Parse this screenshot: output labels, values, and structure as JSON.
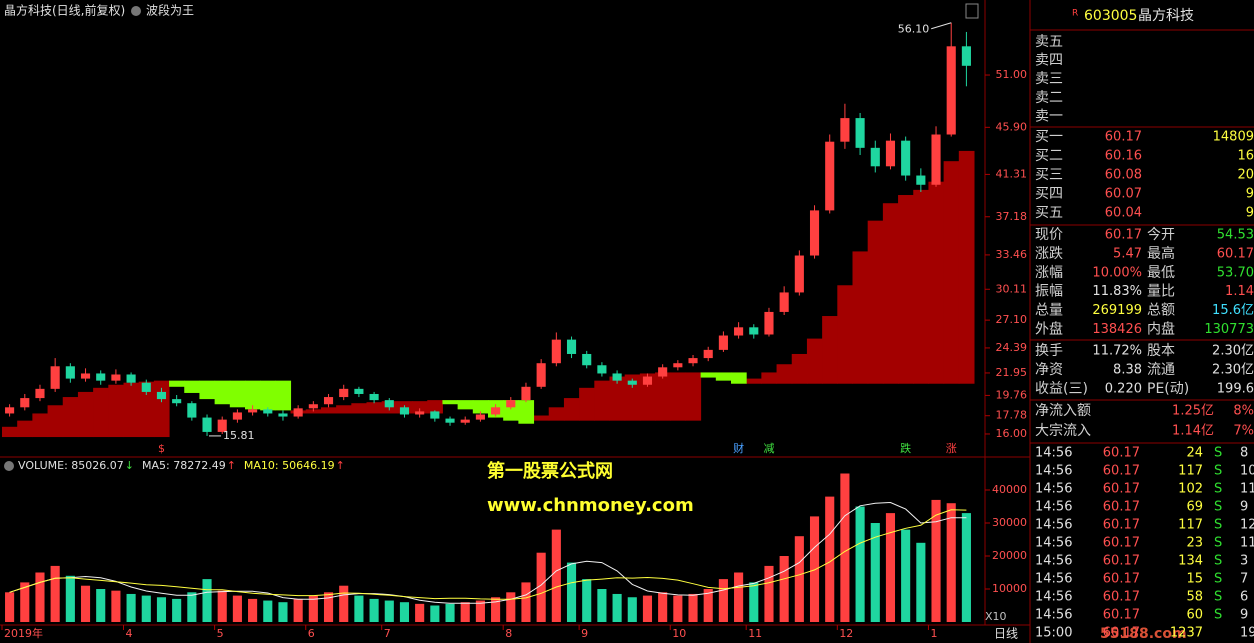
{
  "chart_data": [
    {
      "type": "candlestick",
      "title": "晶方科技(日线,前复权)",
      "subtitle": "波段为王",
      "up_color": "#ff4040",
      "down_color": "#1fd6a0",
      "ylim": [
        13.95,
        56.17
      ],
      "yticks": [
        {
          "value": 16,
          "label": "16.00"
        },
        17.78,
        19.76,
        21.95,
        24.39,
        {
          "value": 27.1,
          "label": "27.10"
        },
        30.11,
        33.46,
        37.18,
        41.31,
        {
          "value": 45.9,
          "label": "45.90"
        },
        {
          "value": 51,
          "label": "51.00"
        }
      ],
      "open": [
        18.0,
        18.6,
        19.5,
        20.4,
        22.6,
        21.4,
        21.9,
        21.2,
        21.8,
        21.0,
        20.1,
        19.4,
        19.0,
        17.6,
        16.2,
        17.4,
        18.1,
        18.4,
        18.0,
        17.7,
        18.5,
        18.9,
        19.6,
        20.4,
        19.9,
        19.3,
        18.6,
        17.9,
        18.2,
        17.5,
        17.1,
        17.4,
        17.9,
        18.6,
        19.3,
        20.6,
        22.9,
        25.2,
        23.8,
        22.7,
        21.9,
        21.2,
        20.8,
        21.6,
        22.5,
        22.9,
        23.4,
        24.2,
        25.6,
        26.4,
        25.7,
        27.9,
        29.8,
        33.4,
        37.8,
        44.5,
        46.8,
        43.9,
        42.1,
        44.6,
        41.2,
        40.3,
        45.2,
        53.8
      ],
      "high": [
        18.9,
        19.9,
        20.8,
        23.4,
        22.9,
        22.4,
        22.2,
        22.3,
        22.0,
        21.3,
        20.5,
        19.8,
        19.2,
        17.9,
        17.7,
        18.4,
        18.8,
        18.6,
        18.3,
        18.8,
        19.2,
        19.9,
        20.8,
        20.6,
        20.1,
        19.5,
        18.8,
        18.5,
        18.3,
        17.7,
        17.7,
        18.2,
        18.9,
        19.6,
        21.0,
        23.3,
        25.9,
        25.5,
        24.1,
        23.0,
        22.2,
        21.4,
        21.9,
        22.8,
        23.2,
        23.7,
        24.5,
        26.0,
        26.9,
        26.7,
        28.3,
        30.4,
        33.9,
        38.3,
        45.2,
        48.2,
        47.3,
        44.6,
        45.3,
        45.0,
        41.9,
        46.0,
        56.1,
        55.2
      ],
      "low": [
        17.7,
        18.3,
        19.2,
        20.1,
        21.0,
        21.1,
        20.8,
        20.9,
        20.7,
        19.8,
        19.1,
        18.7,
        17.3,
        15.81,
        16.0,
        17.1,
        17.8,
        17.7,
        17.3,
        17.5,
        18.2,
        18.6,
        19.3,
        19.6,
        19.0,
        18.3,
        17.6,
        17.6,
        17.2,
        16.8,
        16.9,
        17.2,
        17.7,
        18.4,
        19.1,
        20.4,
        22.6,
        23.4,
        22.4,
        21.6,
        20.9,
        20.5,
        20.6,
        21.4,
        22.2,
        22.6,
        23.1,
        24.0,
        25.3,
        25.3,
        25.5,
        27.6,
        29.5,
        33.1,
        37.5,
        43.8,
        43.2,
        41.5,
        41.8,
        40.7,
        39.6,
        40.1,
        45.0,
        49.9
      ],
      "close": [
        18.6,
        19.5,
        20.4,
        22.6,
        21.4,
        21.9,
        21.2,
        21.8,
        21.0,
        20.1,
        19.4,
        19.0,
        17.6,
        16.2,
        17.4,
        18.1,
        18.4,
        18.0,
        17.7,
        18.5,
        18.9,
        19.6,
        20.4,
        19.9,
        19.3,
        18.6,
        17.9,
        18.2,
        17.5,
        17.1,
        17.4,
        17.9,
        18.6,
        19.3,
        20.6,
        22.9,
        25.2,
        23.8,
        22.7,
        21.9,
        21.2,
        20.8,
        21.6,
        22.5,
        22.9,
        23.4,
        24.2,
        25.6,
        26.4,
        25.7,
        27.9,
        29.8,
        33.4,
        37.8,
        44.5,
        46.8,
        43.9,
        42.1,
        44.6,
        41.2,
        40.3,
        45.2,
        53.8,
        51.9
      ],
      "band": {
        "rise_color": "#a30000",
        "fall_color": "#80ff00",
        "rise_top": [
          16.7,
          17.3,
          18.0,
          18.8,
          19.6,
          20.1,
          20.5,
          20.8,
          21.0,
          21.1,
          21.2,
          null,
          null,
          null,
          null,
          null,
          null,
          null,
          null,
          18.3,
          18.4,
          18.6,
          18.8,
          19.0,
          19.1,
          19.2,
          19.2,
          19.2,
          19.3,
          null,
          null,
          null,
          null,
          null,
          null,
          17.8,
          18.6,
          19.5,
          20.5,
          21.2,
          21.6,
          21.8,
          21.9,
          22.0,
          22.0,
          22.0,
          null,
          null,
          null,
          21.4,
          22.0,
          22.8,
          23.8,
          25.3,
          27.5,
          30.5,
          33.8,
          36.8,
          38.5,
          39.3,
          39.8,
          40.6,
          42.6,
          43.6
        ],
        "rise_bottom": [
          15.7,
          15.7,
          15.7,
          15.7,
          15.7,
          15.7,
          15.7,
          15.7,
          15.7,
          15.7,
          15.7,
          null,
          null,
          null,
          null,
          null,
          null,
          null,
          null,
          18.0,
          18.0,
          18.0,
          18.0,
          18.0,
          18.0,
          18.0,
          18.0,
          18.0,
          18.0,
          null,
          null,
          null,
          null,
          null,
          null,
          17.3,
          17.3,
          17.3,
          17.3,
          17.3,
          17.3,
          17.3,
          17.3,
          17.3,
          17.3,
          17.3,
          null,
          null,
          null,
          20.9,
          20.9,
          20.9,
          20.9,
          20.9,
          20.9,
          20.9,
          20.9,
          20.9,
          20.9,
          20.9,
          20.9,
          20.9,
          20.9,
          20.9
        ],
        "fall_top": [
          null,
          null,
          null,
          null,
          null,
          null,
          null,
          null,
          null,
          null,
          null,
          21.2,
          21.2,
          21.2,
          21.2,
          21.2,
          21.2,
          21.2,
          21.2,
          null,
          null,
          null,
          null,
          null,
          null,
          null,
          null,
          null,
          null,
          19.3,
          19.3,
          19.3,
          19.3,
          19.3,
          19.3,
          null,
          null,
          null,
          null,
          null,
          null,
          null,
          null,
          null,
          null,
          null,
          22.0,
          22.0,
          22.0,
          null,
          null,
          null,
          null,
          null,
          null,
          null,
          null,
          null,
          null,
          null,
          null,
          null,
          null,
          null
        ],
        "fall_bottom": [
          null,
          null,
          null,
          null,
          null,
          null,
          null,
          null,
          null,
          null,
          null,
          20.6,
          20.0,
          19.4,
          18.9,
          18.6,
          18.4,
          18.3,
          18.3,
          null,
          null,
          null,
          null,
          null,
          null,
          null,
          null,
          null,
          null,
          18.9,
          18.4,
          18.0,
          17.6,
          17.3,
          17.0,
          null,
          null,
          null,
          null,
          null,
          null,
          null,
          null,
          null,
          null,
          null,
          21.5,
          21.2,
          20.9,
          null,
          null,
          null,
          null,
          null,
          null,
          null,
          null,
          null,
          null,
          null,
          null,
          null,
          null,
          null
        ]
      },
      "annotations": [
        {
          "x": 62,
          "value": 56.1,
          "label": "56.10"
        },
        {
          "x": 13,
          "value": 15.81,
          "label": "15.81"
        }
      ],
      "signals": [
        {
          "x": 10,
          "label": "$",
          "color": "#ff4040"
        },
        {
          "x": 48,
          "label": "财",
          "color": "#4aa0ff"
        },
        {
          "x": 50,
          "label": "减",
          "color": "#40e040"
        },
        {
          "x": 59,
          "label": "跌",
          "color": "#40e040"
        },
        {
          "x": 62,
          "label": "涨",
          "color": "#ff4040"
        }
      ]
    },
    {
      "type": "bar",
      "legend": [
        {
          "text": "VOLUME: 85026.07",
          "arrow": "↓",
          "color": "#e0e0e0",
          "arrow_color": "#40e040"
        },
        {
          "text": "MA5: 78272.49",
          "arrow": "↑",
          "color": "#e0e0e0",
          "arrow_color": "#ff4040"
        },
        {
          "text": "MA10: 50646.19",
          "arrow": "↑",
          "color": "#ffff40",
          "arrow_color": "#ff4040"
        }
      ],
      "ylim": [
        0,
        49700
      ],
      "yticks": [
        10000,
        20000,
        30000,
        40000
      ],
      "values": [
        9000,
        12000,
        15000,
        17000,
        14000,
        11000,
        10000,
        9500,
        8500,
        8000,
        7500,
        7000,
        9000,
        13000,
        9500,
        8000,
        7000,
        6500,
        6000,
        7000,
        8000,
        9000,
        11000,
        8000,
        7000,
        6500,
        6000,
        5500,
        5000,
        5500,
        6000,
        6500,
        7500,
        9000,
        12000,
        21000,
        28000,
        18000,
        13000,
        10000,
        8500,
        7500,
        8000,
        9000,
        8000,
        8500,
        10000,
        13000,
        15000,
        12000,
        17000,
        20000,
        26000,
        32000,
        38000,
        45000,
        35000,
        30000,
        33000,
        28000,
        24000,
        37000,
        36000,
        33000
      ],
      "lines": [
        {
          "color": "#f0f0f0",
          "values": [
            9000,
            10500,
            12000,
            13250,
            13400,
            13800,
            13400,
            12300,
            10600,
            9400,
            8700,
            8100,
            8100,
            9000,
            9200,
            9300,
            9300,
            8800,
            7400,
            6900,
            6900,
            7300,
            8200,
            8600,
            8600,
            8300,
            7700,
            6600,
            6000,
            5700,
            5700,
            5700,
            6100,
            6900,
            8200,
            11200,
            15500,
            17600,
            18400,
            18000,
            15500,
            11400,
            9400,
            8700,
            8200,
            8100,
            8700,
            9700,
            10900,
            11700,
            13400,
            15400,
            18000,
            22600,
            26600,
            32200,
            35200,
            36000,
            36200,
            34200,
            30000,
            30400,
            31600,
            31600
          ]
        },
        {
          "color": "#ffff40",
          "values": [
            9000,
            10500,
            12000,
            13250,
            13400,
            13000,
            12600,
            12200,
            11800,
            11300,
            11100,
            10700,
            10200,
            9800,
            9800,
            9200,
            8700,
            8400,
            8200,
            8000,
            8000,
            8300,
            8800,
            8700,
            8400,
            8100,
            7700,
            7400,
            7100,
            7200,
            7200,
            7000,
            6900,
            6900,
            7300,
            8700,
            10600,
            11900,
            12700,
            13000,
            13400,
            13300,
            13500,
            13200,
            12700,
            11600,
            10500,
            10100,
            10500,
            11000,
            11900,
            13100,
            14300,
            15800,
            18200,
            21400,
            23900,
            25700,
            27100,
            28400,
            29300,
            32400,
            34000,
            33900
          ]
        }
      ],
      "xticks": [
        {
          "value": 0,
          "label": "2019年"
        },
        {
          "value": 8,
          "label": "4"
        },
        {
          "value": 14,
          "label": "5"
        },
        {
          "value": 20,
          "label": "6"
        },
        {
          "value": 25,
          "label": "7"
        },
        {
          "value": 33,
          "label": "8"
        },
        {
          "value": 38,
          "label": "9"
        },
        {
          "value": 44,
          "label": "10"
        },
        {
          "value": 49,
          "label": "11"
        },
        {
          "value": 55,
          "label": "12"
        },
        {
          "value": 61,
          "label": "1"
        }
      ],
      "scale_note": "X10",
      "period": "日线"
    }
  ],
  "watermark": {
    "line1": "第一股票公式网",
    "line2": "www.chnmoney.com",
    "corner": "55188.com"
  },
  "quote": {
    "badge": "R",
    "code": "603005",
    "name": "晶方科技",
    "asks": [
      "卖五",
      "卖四",
      "卖三",
      "卖二",
      "卖一"
    ],
    "bids": [
      [
        "买一",
        "60.17",
        "14809"
      ],
      [
        "买二",
        "60.16",
        "16"
      ],
      [
        "买三",
        "60.08",
        "20"
      ],
      [
        "买四",
        "60.07",
        "9"
      ],
      [
        "买五",
        "60.04",
        "9"
      ]
    ],
    "stats": [
      {
        "cells": [
          "现价",
          "60.17",
          "今开",
          "54.53"
        ],
        "colors": [
          "#ff5050",
          "#30e030"
        ]
      },
      {
        "cells": [
          "涨跌",
          "5.47",
          "最高",
          "60.17"
        ],
        "colors": [
          "#ff5050",
          "#ff5050"
        ]
      },
      {
        "cells": [
          "涨幅",
          "10.00%",
          "最低",
          "53.70"
        ],
        "colors": [
          "#ff5050",
          "#30e030"
        ]
      },
      {
        "cells": [
          "振幅",
          "11.83%",
          "量比",
          "1.14"
        ],
        "colors": [
          "#e0e0e0",
          "#ff5050"
        ]
      },
      {
        "cells": [
          "总量",
          "269199",
          "总额",
          "15.6亿"
        ],
        "colors": [
          "#ffff40",
          "#40e0ff"
        ]
      },
      {
        "cells": [
          "外盘",
          "138426",
          "内盘",
          "130773"
        ],
        "colors": [
          "#ff5050",
          "#30e030"
        ]
      }
    ],
    "finance": [
      {
        "cells": [
          "换手",
          "11.72%",
          "股本",
          "2.30亿"
        ],
        "colors": [
          "#e0e0e0",
          "#e0e0e0"
        ]
      },
      {
        "cells": [
          "净资",
          "8.38",
          "流通",
          "2.30亿"
        ],
        "colors": [
          "#e0e0e0",
          "#e0e0e0"
        ]
      },
      {
        "cells": [
          "收益(三)",
          "0.220",
          "PE(动)",
          "199.6"
        ],
        "colors": [
          "#e0e0e0",
          "#e0e0e0"
        ]
      }
    ],
    "flows": [
      [
        "净流入额",
        "1.25亿",
        "8%"
      ],
      [
        "大宗流入",
        "1.14亿",
        "7%"
      ]
    ],
    "trades": [
      [
        "14:56",
        "60.17",
        "24",
        "S",
        "8"
      ],
      [
        "14:56",
        "60.17",
        "117",
        "S",
        "10"
      ],
      [
        "14:56",
        "60.17",
        "102",
        "S",
        "11"
      ],
      [
        "14:56",
        "60.17",
        "69",
        "S",
        "9"
      ],
      [
        "14:56",
        "60.17",
        "117",
        "S",
        "12"
      ],
      [
        "14:56",
        "60.17",
        "23",
        "S",
        "11"
      ],
      [
        "14:56",
        "60.17",
        "134",
        "S",
        "3"
      ],
      [
        "14:56",
        "60.17",
        "15",
        "S",
        "7"
      ],
      [
        "14:56",
        "60.17",
        "58",
        "S",
        "6"
      ],
      [
        "14:56",
        "60.17",
        "60",
        "S",
        "9"
      ],
      [
        "15:00",
        "60.17",
        "1237",
        "",
        "19"
      ]
    ]
  }
}
